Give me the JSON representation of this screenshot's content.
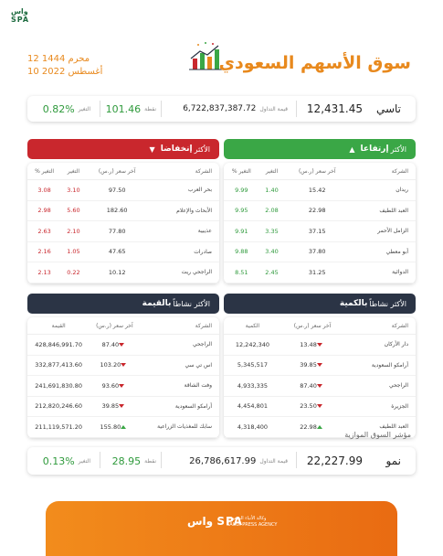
{
  "logo": {
    "line1": "واس",
    "line2": "SPA"
  },
  "dates": {
    "hijri": "12 محرم 1444",
    "gregorian": "10 أغسطس 2022"
  },
  "title": "سوق الأسهم السعودي",
  "tasi": {
    "name": "تاسي",
    "value": "12,431.45",
    "turnover_label": "قيمة التداول",
    "turnover": "6,722,837,387.72",
    "points_label": "نقطة",
    "points": "101.46",
    "change_label": "التغير",
    "change": "0.82%"
  },
  "top_gainers": {
    "title_prefix": "الأكثر",
    "title_bold": "إرتفاعا",
    "columns": [
      "الشركة",
      "آخر سعر (ر.س)",
      "التغير",
      "التغير %"
    ],
    "rows": [
      {
        "name": "ريدان",
        "price": "15.42",
        "change": "1.40",
        "pct": "9.99"
      },
      {
        "name": "العبد اللطيف",
        "price": "22.98",
        "change": "2.08",
        "pct": "9.95"
      },
      {
        "name": "الزامل الأحمر",
        "price": "37.15",
        "change": "3.35",
        "pct": "9.91"
      },
      {
        "name": "أبو معطي",
        "price": "37.80",
        "change": "3.40",
        "pct": "9.88"
      },
      {
        "name": "الدوائية",
        "price": "31.25",
        "change": "2.45",
        "pct": "8.51"
      }
    ]
  },
  "top_losers": {
    "title_prefix": "الأكثر",
    "title_bold": "إنخفاضا",
    "columns": [
      "الشركة",
      "آخر سعر (ر.س)",
      "التغير",
      "التغير %"
    ],
    "rows": [
      {
        "name": "بحر العرب",
        "price": "97.50",
        "change": "3.10",
        "pct": "3.08"
      },
      {
        "name": "الأبحاث والإعلام",
        "price": "182.60",
        "change": "5.60",
        "pct": "2.98"
      },
      {
        "name": "عذيبية",
        "price": "77.80",
        "change": "2.10",
        "pct": "2.63"
      },
      {
        "name": "صادرات",
        "price": "47.65",
        "change": "1.05",
        "pct": "2.16"
      },
      {
        "name": "الراجحي ريت",
        "price": "10.12",
        "change": "0.22",
        "pct": "2.13"
      }
    ]
  },
  "most_active_qty": {
    "title_prefix": "الأكثر نشاطاً",
    "title_bold": "بالكمية",
    "columns": [
      "الشركة",
      "آخر سعر (ر.س)",
      "الكمية"
    ],
    "rows": [
      {
        "name": "دار الأركان",
        "price": "13.48",
        "qty": "12,242,340",
        "dir": "down"
      },
      {
        "name": "أرامكو السعودية",
        "price": "39.85",
        "qty": "5,345,517",
        "dir": "down"
      },
      {
        "name": "الراجحي",
        "price": "87.40",
        "qty": "4,933,335",
        "dir": "down"
      },
      {
        "name": "الجزيرة",
        "price": "23.50",
        "qty": "4,454,801",
        "dir": "down"
      },
      {
        "name": "العبد اللطيف",
        "price": "22.98",
        "qty": "4,318,400",
        "dir": "up"
      }
    ]
  },
  "most_active_value": {
    "title_prefix": "الأكثر نشاطاً",
    "title_bold": "بالقيمة",
    "columns": [
      "الشركة",
      "آخر سعر (ر.س)",
      "القيمة"
    ],
    "rows": [
      {
        "name": "الراجحي",
        "price": "87.40",
        "value": "428,846,991.70",
        "dir": "down"
      },
      {
        "name": "اس تي سي",
        "price": "103.20",
        "value": "332,877,413.60",
        "dir": "down"
      },
      {
        "name": "وفت الشاقة",
        "price": "93.60",
        "value": "241,691,830.80",
        "dir": "down"
      },
      {
        "name": "أرامكو السعودية",
        "price": "39.85",
        "value": "212,820,246.60",
        "dir": "down"
      },
      {
        "name": "سابك للمغذيات الزراعية",
        "price": "155.80",
        "value": "211,119,571.20",
        "dir": "up"
      }
    ]
  },
  "parallel": {
    "section_label": "مؤشر السوق الموازية",
    "name": "نمو",
    "value": "22,227.99",
    "turnover_label": "قيمة التداول",
    "turnover": "26,786,617.99",
    "points_label": "نقطة",
    "points": "28.95",
    "change_label": "التغير",
    "change": "0.13%"
  },
  "footer": {
    "logo_short": "واس SPA",
    "agency_ar": "وكالة الأنباء السعودية",
    "agency_en": "SAUDI PRESS AGENCY"
  },
  "colors": {
    "accent": "#e8891d",
    "green": "#3aa746",
    "red": "#c9272d",
    "navy": "#2b3445"
  }
}
